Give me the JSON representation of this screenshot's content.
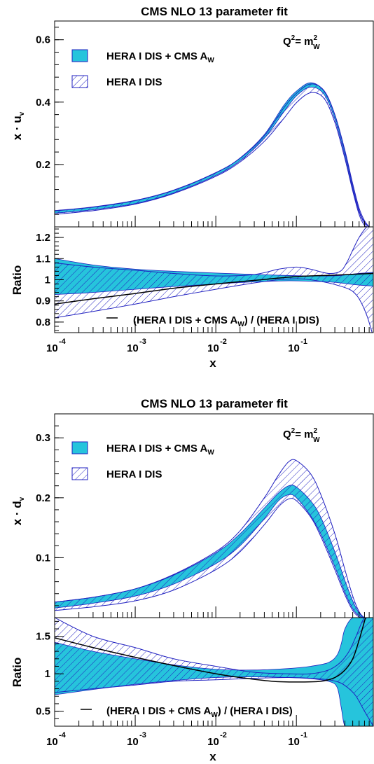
{
  "colors": {
    "band_a": "#26c4dc",
    "band_b_hatch": "#2020c0",
    "ratio_line": "#000000"
  },
  "chart_data": [
    {
      "type": "area",
      "title": "CMS NLO 13 parameter fit",
      "scale_label": "Q²= m²W",
      "ylabel": "x · u_v",
      "xscale": "log",
      "xlim": [
        0.0001,
        0.9
      ],
      "ylim": [
        0,
        0.66
      ],
      "yticks": [
        0.2,
        0.4,
        0.6
      ],
      "legend_placement": "top-left",
      "series": [
        {
          "name": "HERA I DIS + CMS A_W",
          "style": "filled",
          "x": [
            0.0001,
            0.0003,
            0.001,
            0.003,
            0.01,
            0.02,
            0.04,
            0.07,
            0.1,
            0.15,
            0.22,
            0.3,
            0.4,
            0.5,
            0.6,
            0.7,
            0.8
          ],
          "lo": [
            0.044,
            0.055,
            0.075,
            0.109,
            0.165,
            0.212,
            0.284,
            0.369,
            0.42,
            0.448,
            0.425,
            0.345,
            0.228,
            0.121,
            0.048,
            0.012,
            0.0
          ],
          "hi": [
            0.051,
            0.063,
            0.084,
            0.117,
            0.173,
            0.221,
            0.296,
            0.39,
            0.435,
            0.462,
            0.435,
            0.358,
            0.24,
            0.13,
            0.053,
            0.015,
            0.0
          ]
        },
        {
          "name": "HERA I DIS",
          "style": "hatched",
          "x": [
            0.0001,
            0.0003,
            0.001,
            0.003,
            0.01,
            0.02,
            0.04,
            0.07,
            0.1,
            0.15,
            0.22,
            0.3,
            0.4,
            0.5,
            0.6,
            0.7,
            0.8
          ],
          "lo": [
            0.04,
            0.052,
            0.073,
            0.107,
            0.162,
            0.208,
            0.274,
            0.348,
            0.398,
            0.43,
            0.412,
            0.335,
            0.219,
            0.115,
            0.04,
            0.005,
            0.0
          ],
          "hi": [
            0.052,
            0.064,
            0.085,
            0.118,
            0.174,
            0.22,
            0.292,
            0.382,
            0.428,
            0.458,
            0.437,
            0.36,
            0.245,
            0.138,
            0.06,
            0.02,
            0.0
          ]
        }
      ]
    },
    {
      "type": "line",
      "ylabel": "Ratio",
      "xlabel": "x",
      "xscale": "log",
      "xlim": [
        0.0001,
        0.9
      ],
      "ylim": [
        0.75,
        1.25
      ],
      "yticks": [
        0.8,
        0.9,
        1,
        1.1,
        1.2
      ],
      "xticks": [
        0.0001,
        0.001,
        0.01,
        0.1
      ],
      "xtick_labels": [
        {
          "base": "10",
          "exp": "-4"
        },
        {
          "base": "10",
          "exp": "-3"
        },
        {
          "base": "10",
          "exp": "-2"
        },
        {
          "base": "10",
          "exp": "-1"
        }
      ],
      "series": [
        {
          "name": "HERA I DIS + CMS A_W",
          "style": "filled",
          "x": [
            0.0001,
            0.0003,
            0.001,
            0.003,
            0.01,
            0.03,
            0.08,
            0.15,
            0.25,
            0.35,
            0.45,
            0.6,
            0.9
          ],
          "lo": [
            0.93,
            0.94,
            0.955,
            0.968,
            0.98,
            0.99,
            0.995,
            0.993,
            0.99,
            0.985,
            0.98,
            0.975,
            0.97
          ],
          "hi": [
            1.1,
            1.07,
            1.05,
            1.04,
            1.032,
            1.025,
            1.02,
            1.018,
            1.018,
            1.02,
            1.025,
            1.03,
            1.035
          ]
        },
        {
          "name": "HERA I DIS",
          "style": "hatched",
          "x": [
            0.0001,
            0.0003,
            0.001,
            0.003,
            0.01,
            0.03,
            0.06,
            0.1,
            0.15,
            0.25,
            0.35,
            0.42,
            0.5,
            0.6,
            0.75,
            0.9
          ],
          "lo": [
            0.82,
            0.85,
            0.885,
            0.92,
            0.955,
            0.985,
            1.0,
            1.005,
            1.0,
            0.985,
            0.97,
            0.96,
            0.945,
            0.91,
            0.83,
            0.73
          ],
          "hi": [
            1.08,
            1.06,
            1.045,
            1.03,
            1.018,
            1.025,
            1.05,
            1.06,
            1.05,
            1.03,
            1.04,
            1.08,
            1.14,
            1.2,
            1.25,
            1.25
          ]
        },
        {
          "name": "(HERA I DIS + CMS A_W) / (HERA I DIS)",
          "style": "line",
          "x": [
            0.0001,
            0.0003,
            0.001,
            0.003,
            0.01,
            0.03,
            0.1,
            0.3,
            0.9
          ],
          "y": [
            0.885,
            0.91,
            0.935,
            0.96,
            0.98,
            0.997,
            1.015,
            1.022,
            1.03
          ]
        }
      ]
    },
    {
      "type": "area",
      "title": "CMS NLO 13 parameter fit",
      "scale_label": "Q²= m²W",
      "ylabel": "x · d_v",
      "xscale": "log",
      "xlim": [
        0.0001,
        0.9
      ],
      "ylim": [
        0,
        0.34
      ],
      "yticks": [
        0.1,
        0.2,
        0.3
      ],
      "legend_placement": "top-left",
      "series": [
        {
          "name": "HERA I DIS + CMS A_W",
          "style": "filled",
          "x": [
            0.0001,
            0.0003,
            0.001,
            0.003,
            0.01,
            0.02,
            0.04,
            0.06,
            0.08,
            0.1,
            0.15,
            0.2,
            0.3,
            0.4,
            0.5,
            0.6,
            0.7,
            0.8
          ],
          "lo": [
            0.016,
            0.024,
            0.036,
            0.056,
            0.09,
            0.12,
            0.165,
            0.195,
            0.205,
            0.2,
            0.17,
            0.14,
            0.085,
            0.042,
            0.015,
            0.003,
            0.0,
            0.0
          ],
          "hi": [
            0.026,
            0.034,
            0.048,
            0.071,
            0.108,
            0.14,
            0.183,
            0.208,
            0.22,
            0.218,
            0.195,
            0.168,
            0.11,
            0.062,
            0.028,
            0.008,
            0.0,
            0.0
          ]
        },
        {
          "name": "HERA I DIS",
          "style": "hatched",
          "x": [
            0.0001,
            0.0003,
            0.001,
            0.003,
            0.01,
            0.02,
            0.04,
            0.06,
            0.08,
            0.1,
            0.15,
            0.2,
            0.3,
            0.4,
            0.5,
            0.6,
            0.7,
            0.8
          ],
          "lo": [
            0.012,
            0.018,
            0.028,
            0.046,
            0.08,
            0.11,
            0.155,
            0.185,
            0.198,
            0.195,
            0.168,
            0.136,
            0.08,
            0.038,
            0.012,
            0.001,
            0.0,
            0.0
          ],
          "hi": [
            0.026,
            0.034,
            0.048,
            0.072,
            0.11,
            0.145,
            0.2,
            0.238,
            0.26,
            0.262,
            0.24,
            0.206,
            0.14,
            0.08,
            0.036,
            0.01,
            0.0,
            0.0
          ]
        }
      ]
    },
    {
      "type": "line",
      "ylabel": "Ratio",
      "xlabel": "x",
      "xscale": "log",
      "xlim": [
        0.0001,
        0.9
      ],
      "ylim": [
        0.3,
        1.75
      ],
      "yticks": [
        0.5,
        1,
        1.5
      ],
      "xticks": [
        0.0001,
        0.001,
        0.01,
        0.1
      ],
      "xtick_labels": [
        {
          "base": "10",
          "exp": "-4"
        },
        {
          "base": "10",
          "exp": "-3"
        },
        {
          "base": "10",
          "exp": "-2"
        },
        {
          "base": "10",
          "exp": "-1"
        }
      ],
      "series": [
        {
          "name": "HERA I DIS + CMS A_W",
          "style": "filled",
          "x": [
            0.0001,
            0.0003,
            0.001,
            0.003,
            0.01,
            0.03,
            0.08,
            0.15,
            0.25,
            0.32,
            0.36,
            0.4,
            0.5,
            0.7,
            0.9
          ],
          "lo": [
            0.72,
            0.79,
            0.86,
            0.91,
            0.95,
            0.96,
            0.95,
            0.935,
            0.9,
            0.82,
            0.55,
            0.3,
            0.3,
            0.3,
            0.3
          ],
          "hi": [
            1.42,
            1.3,
            1.2,
            1.12,
            1.06,
            1.05,
            1.07,
            1.1,
            1.15,
            1.25,
            1.4,
            1.6,
            1.75,
            1.75,
            1.75
          ]
        },
        {
          "name": "HERA I DIS",
          "style": "hatched",
          "x": [
            0.0001,
            0.0003,
            0.001,
            0.003,
            0.01,
            0.03,
            0.08,
            0.15,
            0.25,
            0.35,
            0.45,
            0.55,
            0.7,
            0.9
          ],
          "lo": [
            0.75,
            0.8,
            0.85,
            0.9,
            0.92,
            0.94,
            0.95,
            0.94,
            0.92,
            0.88,
            0.8,
            0.7,
            0.5,
            0.3
          ],
          "hi": [
            1.75,
            1.5,
            1.35,
            1.2,
            1.1,
            1.02,
            1.0,
            1.0,
            1.05,
            1.15,
            1.3,
            1.5,
            1.75,
            1.75
          ]
        },
        {
          "name": "(HERA I DIS + CMS A_W) / (HERA I DIS)",
          "style": "line",
          "x": [
            0.0001,
            0.0003,
            0.001,
            0.003,
            0.01,
            0.02,
            0.05,
            0.1,
            0.2,
            0.3,
            0.4,
            0.5,
            0.6,
            0.72
          ],
          "y": [
            1.48,
            1.35,
            1.22,
            1.11,
            1.0,
            0.95,
            0.9,
            0.89,
            0.9,
            0.95,
            1.05,
            1.2,
            1.45,
            1.75
          ]
        }
      ]
    }
  ]
}
